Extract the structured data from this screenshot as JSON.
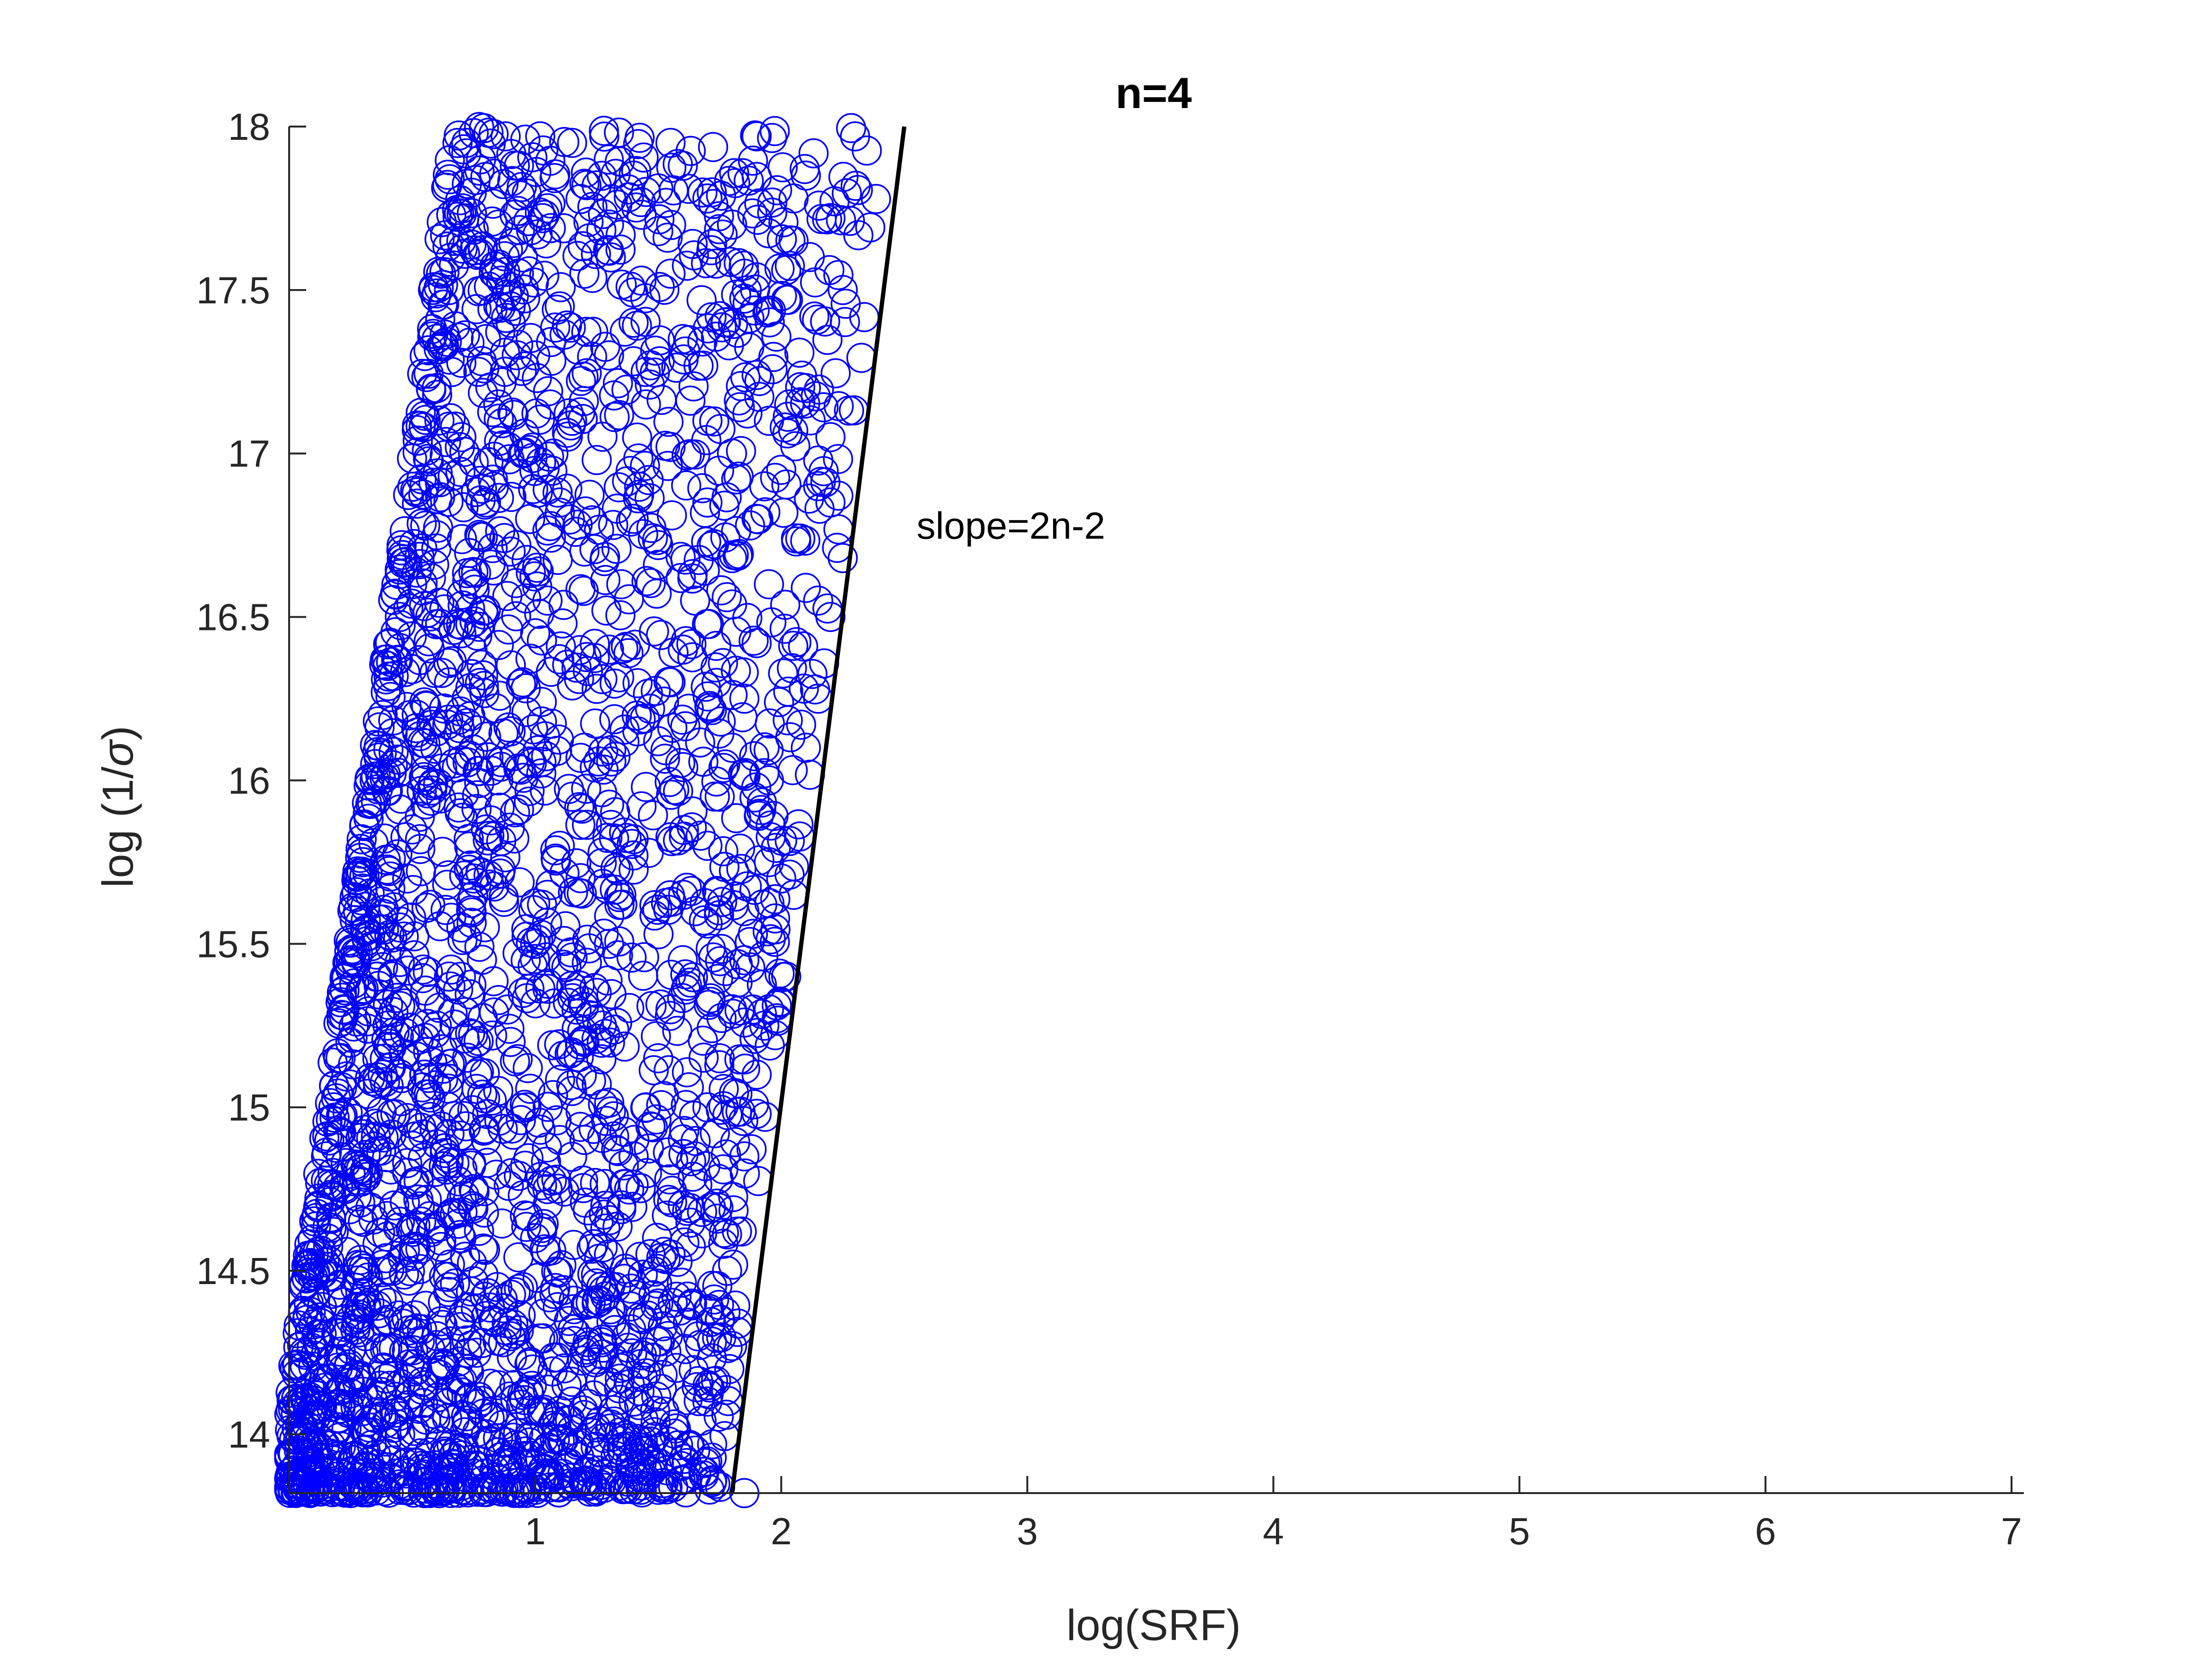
{
  "chart_data": {
    "type": "scatter",
    "title": "n=4",
    "xlabel": "log(SRF)",
    "ylabel_prefix": "log (1/",
    "ylabel_symbol": "σ",
    "ylabel_suffix": ")",
    "xlim": [
      0,
      7.05
    ],
    "ylim": [
      13.82,
      18
    ],
    "x_ticks": [
      1,
      2,
      3,
      4,
      5,
      6,
      7
    ],
    "x_tick_labels": [
      "1",
      "2",
      "3",
      "4",
      "5",
      "6",
      "7"
    ],
    "y_ticks": [
      14,
      14.5,
      15,
      15.5,
      16,
      16.5,
      17,
      17.5,
      18
    ],
    "y_tick_labels": [
      "14",
      "14.5",
      "15",
      "15.5",
      "16",
      "16.5",
      "17",
      "17.5",
      "18"
    ],
    "grid": false,
    "marker": "open-circle",
    "marker_color": "#0000ff",
    "line_color": "#000000",
    "series": [
      {
        "marker": "circle",
        "points_description": "dense cloud of points, log(SRF) from 0 to ~2.3, log(1/sigma) from 13.82 to 18",
        "points": [
          [
            0.75,
            17.98
          ],
          [
            0.88,
            17.97
          ],
          [
            0.96,
            17.96
          ],
          [
            0.72,
            17.95
          ],
          [
            1.15,
            17.95
          ],
          [
            1.55,
            17.95
          ],
          [
            1.9,
            17.97
          ],
          [
            2.3,
            17.97
          ],
          [
            0.78,
            17.9
          ],
          [
            1.4,
            17.85
          ],
          [
            1.6,
            17.88
          ],
          [
            1.25,
            17.82
          ],
          [
            1.45,
            17.8
          ],
          [
            1.7,
            17.78
          ],
          [
            2.05,
            17.78
          ],
          [
            2.1,
            17.85
          ],
          [
            0.85,
            17.7
          ],
          [
            1.05,
            17.75
          ],
          [
            1.3,
            17.7
          ],
          [
            1.5,
            17.68
          ],
          [
            1.8,
            17.7
          ],
          [
            2.05,
            17.65
          ],
          [
            2.2,
            17.72
          ],
          [
            0.7,
            17.65
          ],
          [
            0.95,
            17.6
          ],
          [
            1.2,
            17.55
          ],
          [
            1.55,
            17.55
          ],
          [
            1.85,
            17.55
          ],
          [
            2.25,
            17.5
          ],
          [
            2.02,
            17.47
          ],
          [
            0.65,
            17.5
          ],
          [
            0.9,
            17.45
          ],
          [
            1.1,
            17.45
          ],
          [
            1.4,
            17.4
          ],
          [
            1.75,
            17.42
          ],
          [
            0.8,
            17.35
          ],
          [
            1.0,
            17.3
          ],
          [
            1.3,
            17.3
          ],
          [
            1.6,
            17.35
          ],
          [
            1.9,
            17.24
          ],
          [
            2.1,
            17.2
          ],
          [
            0.6,
            17.2
          ],
          [
            0.85,
            17.15
          ],
          [
            1.15,
            17.1
          ],
          [
            1.45,
            17.15
          ],
          [
            1.7,
            17.1
          ],
          [
            1.95,
            17.1
          ],
          [
            2.2,
            17.05
          ],
          [
            0.7,
            17.05
          ],
          [
            0.95,
            17.0
          ],
          [
            1.25,
            16.98
          ],
          [
            1.55,
            17.02
          ],
          [
            1.8,
            17.0
          ],
          [
            2.0,
            16.95
          ],
          [
            2.15,
            16.9
          ],
          [
            0.55,
            16.9
          ],
          [
            0.8,
            16.85
          ],
          [
            1.1,
            16.85
          ],
          [
            1.4,
            16.8
          ],
          [
            1.7,
            16.85
          ],
          [
            1.9,
            16.8
          ],
          [
            2.2,
            16.85
          ],
          [
            0.6,
            16.75
          ],
          [
            0.9,
            16.7
          ],
          [
            1.2,
            16.7
          ],
          [
            1.5,
            16.72
          ],
          [
            1.8,
            16.68
          ],
          [
            2.25,
            16.68
          ],
          [
            0.5,
            16.6
          ],
          [
            0.75,
            16.6
          ],
          [
            1.05,
            16.55
          ],
          [
            1.35,
            16.6
          ],
          [
            1.65,
            16.55
          ],
          [
            1.95,
            16.6
          ],
          [
            2.15,
            16.55
          ],
          [
            0.45,
            16.5
          ],
          [
            0.7,
            16.45
          ],
          [
            1.0,
            16.45
          ],
          [
            1.3,
            16.4
          ],
          [
            1.6,
            16.4
          ],
          [
            1.9,
            16.42
          ],
          [
            2.2,
            16.5
          ],
          [
            0.4,
            16.35
          ],
          [
            0.65,
            16.3
          ],
          [
            0.95,
            16.3
          ],
          [
            1.25,
            16.28
          ],
          [
            1.55,
            16.3
          ],
          [
            1.85,
            16.25
          ],
          [
            2.15,
            16.25
          ],
          [
            0.38,
            16.2
          ],
          [
            0.6,
            16.15
          ],
          [
            0.9,
            16.15
          ],
          [
            1.2,
            16.1
          ],
          [
            1.5,
            16.12
          ],
          [
            1.8,
            16.1
          ],
          [
            2.1,
            16.1
          ],
          [
            0.35,
            16.05
          ],
          [
            0.55,
            16.0
          ],
          [
            0.85,
            16.0
          ],
          [
            1.15,
            15.95
          ],
          [
            1.45,
            15.98
          ],
          [
            1.75,
            15.95
          ],
          [
            1.95,
            16.0
          ],
          [
            0.32,
            15.9
          ],
          [
            0.5,
            15.85
          ],
          [
            0.8,
            15.85
          ],
          [
            1.1,
            15.8
          ],
          [
            1.4,
            15.82
          ],
          [
            1.7,
            15.8
          ],
          [
            1.95,
            15.75
          ],
          [
            2.0,
            15.7
          ],
          [
            0.3,
            15.75
          ],
          [
            0.48,
            15.7
          ],
          [
            0.75,
            15.7
          ],
          [
            1.05,
            15.65
          ],
          [
            1.35,
            15.65
          ],
          [
            1.65,
            15.6
          ],
          [
            1.85,
            15.6
          ],
          [
            2.05,
            15.65
          ],
          [
            0.28,
            15.6
          ],
          [
            0.45,
            15.55
          ],
          [
            0.7,
            15.55
          ],
          [
            1.0,
            15.5
          ],
          [
            1.3,
            15.5
          ],
          [
            1.6,
            15.45
          ],
          [
            1.85,
            15.45
          ],
          [
            2.02,
            15.4
          ],
          [
            0.25,
            15.45
          ],
          [
            0.42,
            15.4
          ],
          [
            0.65,
            15.4
          ],
          [
            0.95,
            15.35
          ],
          [
            1.25,
            15.35
          ],
          [
            1.55,
            15.3
          ],
          [
            1.8,
            15.3
          ],
          [
            1.95,
            15.3
          ],
          [
            0.22,
            15.3
          ],
          [
            0.4,
            15.25
          ],
          [
            0.6,
            15.25
          ],
          [
            0.9,
            15.2
          ],
          [
            1.2,
            15.2
          ],
          [
            1.5,
            15.15
          ],
          [
            1.75,
            15.15
          ],
          [
            1.9,
            15.1
          ],
          [
            0.2,
            15.15
          ],
          [
            0.38,
            15.1
          ],
          [
            0.55,
            15.1
          ],
          [
            0.85,
            15.05
          ],
          [
            1.15,
            15.05
          ],
          [
            1.45,
            15.0
          ],
          [
            1.7,
            15.0
          ],
          [
            1.9,
            14.98
          ],
          [
            0.18,
            15.0
          ],
          [
            0.35,
            14.95
          ],
          [
            0.5,
            14.95
          ],
          [
            0.8,
            14.9
          ],
          [
            1.1,
            14.9
          ],
          [
            1.4,
            14.85
          ],
          [
            1.65,
            14.85
          ],
          [
            1.85,
            14.85
          ],
          [
            0.15,
            14.85
          ],
          [
            0.32,
            14.8
          ],
          [
            0.48,
            14.8
          ],
          [
            0.75,
            14.75
          ],
          [
            1.05,
            14.75
          ],
          [
            1.35,
            14.7
          ],
          [
            1.6,
            14.7
          ],
          [
            1.82,
            14.62
          ],
          [
            0.12,
            14.7
          ],
          [
            0.3,
            14.65
          ],
          [
            0.45,
            14.65
          ],
          [
            0.7,
            14.6
          ],
          [
            1.0,
            14.6
          ],
          [
            1.3,
            14.55
          ],
          [
            1.55,
            14.55
          ],
          [
            1.78,
            14.5
          ],
          [
            0.1,
            14.55
          ],
          [
            0.28,
            14.5
          ],
          [
            0.42,
            14.5
          ],
          [
            0.65,
            14.45
          ],
          [
            0.95,
            14.45
          ],
          [
            1.25,
            14.4
          ],
          [
            1.5,
            14.4
          ],
          [
            1.75,
            14.35
          ],
          [
            0.08,
            14.4
          ],
          [
            0.25,
            14.35
          ],
          [
            0.4,
            14.35
          ],
          [
            0.6,
            14.3
          ],
          [
            0.9,
            14.3
          ],
          [
            1.2,
            14.25
          ],
          [
            1.45,
            14.25
          ],
          [
            1.8,
            14.27
          ],
          [
            0.06,
            14.25
          ],
          [
            0.22,
            14.2
          ],
          [
            0.38,
            14.2
          ],
          [
            0.55,
            14.15
          ],
          [
            0.85,
            14.15
          ],
          [
            1.15,
            14.1
          ],
          [
            1.4,
            14.1
          ],
          [
            1.7,
            14.1
          ],
          [
            0.05,
            14.1
          ],
          [
            0.2,
            14.05
          ],
          [
            0.35,
            14.05
          ],
          [
            0.5,
            14.0
          ],
          [
            0.8,
            14.0
          ],
          [
            1.1,
            13.98
          ],
          [
            1.35,
            13.98
          ],
          [
            1.65,
            13.95
          ],
          [
            0.04,
            13.95
          ],
          [
            0.18,
            13.92
          ],
          [
            0.32,
            13.9
          ],
          [
            0.48,
            13.88
          ],
          [
            0.75,
            13.88
          ],
          [
            1.05,
            13.86
          ],
          [
            1.3,
            13.86
          ],
          [
            1.6,
            13.86
          ],
          [
            0.03,
            13.85
          ],
          [
            0.15,
            13.84
          ],
          [
            0.3,
            13.84
          ],
          [
            0.45,
            13.83
          ],
          [
            0.7,
            13.83
          ],
          [
            1.0,
            13.83
          ],
          [
            1.25,
            13.83
          ],
          [
            1.5,
            13.83
          ],
          [
            1.85,
            13.82
          ]
        ]
      }
    ],
    "reference_line": {
      "x": [
        1.8,
        2.5
      ],
      "y": [
        13.82,
        18
      ],
      "label": "slope=2n-2",
      "label_x": 2.55,
      "label_y": 16.78
    }
  }
}
